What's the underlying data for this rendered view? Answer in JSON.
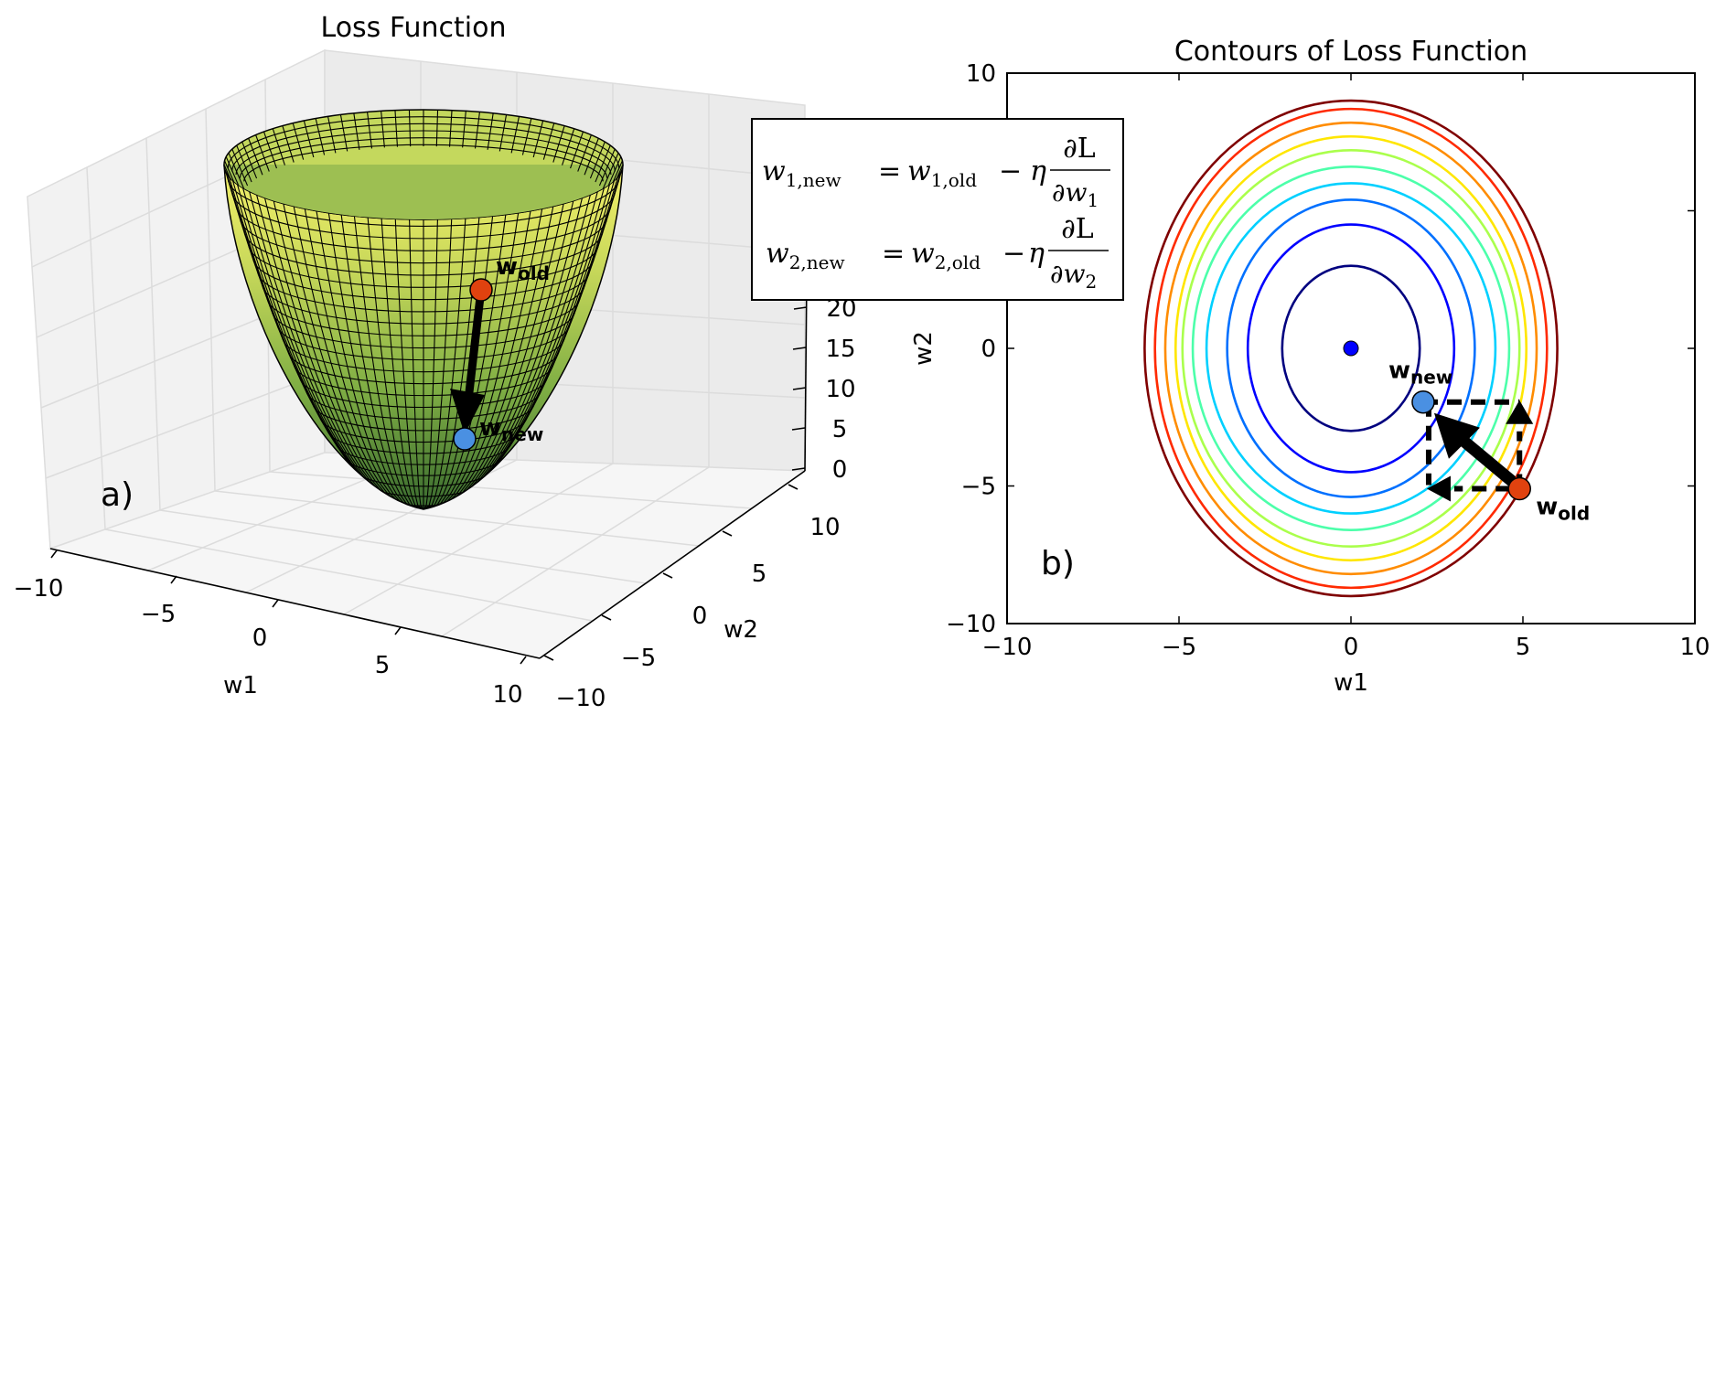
{
  "chart_data": [
    {
      "type": "surface",
      "title": "Loss Function",
      "xlabel": "w1",
      "ylabel": "w2",
      "x_ticks": [
        "−10",
        "−5",
        "0",
        "5",
        "10"
      ],
      "y_ticks": [
        "−10",
        "−5",
        "0",
        "5",
        "10"
      ],
      "z_ticks": [
        "0",
        "5",
        "10",
        "15",
        "20"
      ],
      "xlim": [
        -10,
        10
      ],
      "ylim": [
        -10,
        10
      ],
      "zlim": [
        0,
        20
      ],
      "grid": true,
      "panel_label": "a)",
      "colormap": [
        "#3a6b2f",
        "#7fae44",
        "#c8d85a",
        "#f4f06a"
      ],
      "points": [
        {
          "label": "w",
          "sub": "old",
          "color": "#e0420f"
        },
        {
          "label": "w",
          "sub": "new",
          "color": "#4a90e2"
        }
      ]
    },
    {
      "type": "contour",
      "title": "Contours of Loss Function",
      "xlabel": "w1",
      "ylabel": "w2",
      "xlim": [
        -10,
        10
      ],
      "ylim": [
        -10,
        10
      ],
      "x_ticks": [
        "−10",
        "−5",
        "0",
        "5",
        "10"
      ],
      "y_ticks": [
        "−10",
        "−5",
        "0",
        "5",
        "10"
      ],
      "panel_label": "b)",
      "contour_levels": [
        {
          "a": 2,
          "b": 3,
          "color": "#00007f"
        },
        {
          "a": 3,
          "b": 4.5,
          "color": "#0000ff"
        },
        {
          "a": 3.6,
          "b": 5.4,
          "color": "#0070ff"
        },
        {
          "a": 4.2,
          "b": 6.0,
          "color": "#00d0ff"
        },
        {
          "a": 4.6,
          "b": 6.6,
          "color": "#4cffaa"
        },
        {
          "a": 4.9,
          "b": 7.2,
          "color": "#aaff4c"
        },
        {
          "a": 5.1,
          "b": 7.7,
          "color": "#ffe600"
        },
        {
          "a": 5.4,
          "b": 8.2,
          "color": "#ff8c00"
        },
        {
          "a": 5.7,
          "b": 8.7,
          "color": "#ff2a00"
        },
        {
          "a": 6.0,
          "b": 9.0,
          "color": "#7f0000"
        }
      ],
      "minimum": {
        "x": 0,
        "y": 0,
        "color": "#0000ff"
      },
      "w_old": {
        "x": 4.9,
        "y": -5.1,
        "color": "#e0420f"
      },
      "w_new": {
        "x": 2.1,
        "y": -1.95,
        "color": "#4a90e2"
      },
      "points": [
        {
          "label": "w",
          "sub": "old"
        },
        {
          "label": "w",
          "sub": "new"
        }
      ]
    }
  ],
  "equations": [
    {
      "lhs": "w",
      "lhs_sub": "1,new",
      "rhs": "w",
      "rhs_sub": "1,old",
      "eta": "η",
      "num": "∂L",
      "den": "∂w",
      "den_sub": "1",
      "eq": "=",
      "minus": "−"
    },
    {
      "lhs": "w",
      "lhs_sub": "2,new",
      "rhs": "w",
      "rhs_sub": "2,old",
      "eta": "η",
      "num": "∂L",
      "den": "∂w",
      "den_sub": "2",
      "eq": "=",
      "minus": "−"
    }
  ]
}
